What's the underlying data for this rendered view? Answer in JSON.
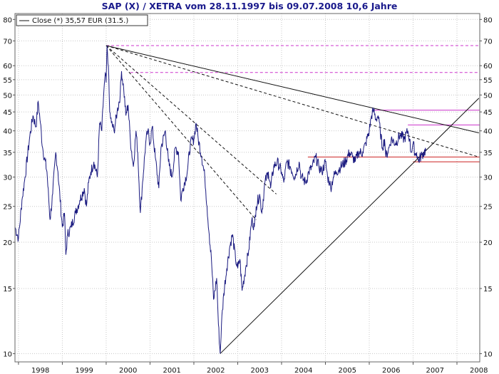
{
  "chart_data": {
    "type": "line",
    "title": "SAP (X) / XETRA vom 28.11.1997 bis 09.07.2008 10,6 Jahre",
    "legend": "Close (*) 35,57 EUR (31.5.)",
    "legend_position": "top-left",
    "y_scale": "log",
    "ylim": [
      9.5,
      83
    ],
    "xlim": [
      1997.92,
      2008.52
    ],
    "yticks": [
      10,
      15,
      20,
      25,
      30,
      35,
      40,
      45,
      50,
      55,
      60,
      70,
      80
    ],
    "xticks": [
      "1998",
      "1999",
      "2000",
      "2001",
      "2002",
      "2003",
      "2004",
      "2005",
      "2006",
      "2007",
      "2008"
    ],
    "grid": true,
    "series": [
      {
        "name": "Close",
        "color": "#1a1a80",
        "points": [
          [
            1997.92,
            22
          ],
          [
            1998.0,
            20.5
          ],
          [
            1998.08,
            26
          ],
          [
            1998.15,
            30
          ],
          [
            1998.25,
            38
          ],
          [
            1998.33,
            44
          ],
          [
            1998.4,
            41
          ],
          [
            1998.45,
            48
          ],
          [
            1998.5,
            42
          ],
          [
            1998.55,
            36
          ],
          [
            1998.65,
            31
          ],
          [
            1998.72,
            23
          ],
          [
            1998.78,
            27
          ],
          [
            1998.85,
            35
          ],
          [
            1998.9,
            31
          ],
          [
            1999.0,
            22
          ],
          [
            1999.05,
            24
          ],
          [
            1999.08,
            18.5
          ],
          [
            1999.12,
            21
          ],
          [
            1999.2,
            22
          ],
          [
            1999.3,
            24
          ],
          [
            1999.4,
            26
          ],
          [
            1999.5,
            28
          ],
          [
            1999.55,
            25
          ],
          [
            1999.6,
            29
          ],
          [
            1999.65,
            31
          ],
          [
            1999.72,
            33
          ],
          [
            1999.8,
            30
          ],
          [
            1999.85,
            42
          ],
          [
            1999.9,
            40
          ],
          [
            1999.95,
            52
          ],
          [
            1999.99,
            57
          ],
          [
            2000.0,
            54
          ],
          [
            2000.02,
            68
          ],
          [
            2000.05,
            60
          ],
          [
            2000.08,
            45
          ],
          [
            2000.12,
            42
          ],
          [
            2000.18,
            40
          ],
          [
            2000.25,
            45
          ],
          [
            2000.32,
            50
          ],
          [
            2000.35,
            58
          ],
          [
            2000.4,
            52
          ],
          [
            2000.45,
            44
          ],
          [
            2000.5,
            47
          ],
          [
            2000.55,
            38
          ],
          [
            2000.62,
            32
          ],
          [
            2000.68,
            40
          ],
          [
            2000.72,
            35
          ],
          [
            2000.78,
            24
          ],
          [
            2000.82,
            28
          ],
          [
            2000.9,
            37
          ],
          [
            2000.95,
            40
          ],
          [
            2001.0,
            37
          ],
          [
            2001.05,
            41
          ],
          [
            2001.12,
            34
          ],
          [
            2001.2,
            28
          ],
          [
            2001.25,
            36
          ],
          [
            2001.35,
            40
          ],
          [
            2001.42,
            33
          ],
          [
            2001.5,
            30
          ],
          [
            2001.58,
            36
          ],
          [
            2001.65,
            35
          ],
          [
            2001.7,
            26
          ],
          [
            2001.75,
            28
          ],
          [
            2001.85,
            31
          ],
          [
            2001.92,
            37
          ],
          [
            2002.0,
            38
          ],
          [
            2002.05,
            42
          ],
          [
            2002.1,
            38
          ],
          [
            2002.18,
            34
          ],
          [
            2002.25,
            30
          ],
          [
            2002.3,
            25
          ],
          [
            2002.35,
            21
          ],
          [
            2002.4,
            18
          ],
          [
            2002.45,
            14
          ],
          [
            2002.52,
            16
          ],
          [
            2002.56,
            12
          ],
          [
            2002.6,
            10
          ],
          [
            2002.63,
            12
          ],
          [
            2002.68,
            14.5
          ],
          [
            2002.75,
            17
          ],
          [
            2002.82,
            19.5
          ],
          [
            2002.88,
            21
          ],
          [
            2002.95,
            18
          ],
          [
            2003.0,
            17
          ],
          [
            2003.05,
            18
          ],
          [
            2003.1,
            14.8
          ],
          [
            2003.18,
            17
          ],
          [
            2003.25,
            19
          ],
          [
            2003.32,
            23
          ],
          [
            2003.38,
            22
          ],
          [
            2003.42,
            25
          ],
          [
            2003.5,
            27
          ],
          [
            2003.55,
            24
          ],
          [
            2003.62,
            29
          ],
          [
            2003.7,
            31
          ],
          [
            2003.75,
            28
          ],
          [
            2003.82,
            32
          ],
          [
            2003.9,
            33
          ],
          [
            2004.0,
            31
          ],
          [
            2004.05,
            29
          ],
          [
            2004.12,
            33
          ],
          [
            2004.2,
            32
          ],
          [
            2004.3,
            30
          ],
          [
            2004.4,
            33
          ],
          [
            2004.45,
            30
          ],
          [
            2004.55,
            29
          ],
          [
            2004.62,
            31
          ],
          [
            2004.7,
            32
          ],
          [
            2004.78,
            34
          ],
          [
            2004.85,
            32
          ],
          [
            2004.92,
            31
          ],
          [
            2005.0,
            33
          ],
          [
            2005.05,
            30
          ],
          [
            2005.1,
            29
          ],
          [
            2005.12,
            28
          ],
          [
            2005.18,
            30
          ],
          [
            2005.25,
            31
          ],
          [
            2005.35,
            32
          ],
          [
            2005.45,
            33
          ],
          [
            2005.55,
            35
          ],
          [
            2005.62,
            34
          ],
          [
            2005.68,
            33
          ],
          [
            2005.75,
            35
          ],
          [
            2005.85,
            35
          ],
          [
            2005.92,
            37
          ],
          [
            2006.0,
            40
          ],
          [
            2006.05,
            44
          ],
          [
            2006.1,
            45.5
          ],
          [
            2006.15,
            43
          ],
          [
            2006.2,
            44
          ],
          [
            2006.25,
            40
          ],
          [
            2006.3,
            36
          ],
          [
            2006.35,
            38
          ],
          [
            2006.38,
            34
          ],
          [
            2006.45,
            36
          ],
          [
            2006.5,
            38
          ],
          [
            2006.6,
            37
          ],
          [
            2006.7,
            39
          ],
          [
            2006.8,
            38
          ],
          [
            2006.88,
            40
          ],
          [
            2006.92,
            38
          ],
          [
            2006.95,
            35
          ],
          [
            2007.0,
            37
          ],
          [
            2007.05,
            34.5
          ],
          [
            2007.08,
            35
          ],
          [
            2007.12,
            33.2
          ],
          [
            2007.2,
            34.5
          ],
          [
            2007.3,
            35.6
          ]
        ]
      }
    ],
    "trendlines": [
      {
        "type": "resistance",
        "style": "solid",
        "from": [
          2000.0,
          68
        ],
        "to": [
          2008.5,
          39.5
        ]
      },
      {
        "type": "resistance",
        "style": "dashed",
        "from": [
          2000.0,
          68
        ],
        "to": [
          2008.5,
          34
        ]
      },
      {
        "type": "resistance",
        "style": "dashed",
        "from": [
          2000.0,
          68
        ],
        "to": [
          2003.88,
          27
        ]
      },
      {
        "type": "resistance",
        "style": "dashed",
        "from": [
          2000.0,
          68
        ],
        "to": [
          2003.42,
          23
        ]
      },
      {
        "type": "support",
        "style": "solid",
        "from": [
          2002.6,
          10
        ],
        "to": [
          2008.5,
          49
        ]
      }
    ],
    "horizontal_lines": [
      {
        "value": 68,
        "style": "dashed",
        "color": "#cc33cc",
        "from": 2000.0,
        "to": 2008.52
      },
      {
        "value": 57.5,
        "style": "dashed",
        "color": "#cc33cc",
        "from": 2000.55,
        "to": 2008.52
      },
      {
        "value": 45.5,
        "style": "solid",
        "color": "#cc33cc",
        "from": 2006.1,
        "to": 2008.52
      },
      {
        "value": 41.5,
        "style": "solid",
        "color": "#cc33cc",
        "from": 2006.88,
        "to": 2008.52
      },
      {
        "value": 34,
        "style": "solid",
        "color": "#cc2222",
        "from": 2004.6,
        "to": 2008.52
      },
      {
        "value": 33,
        "style": "solid",
        "color": "#cc2222",
        "from": 2007.0,
        "to": 2008.52
      }
    ]
  }
}
